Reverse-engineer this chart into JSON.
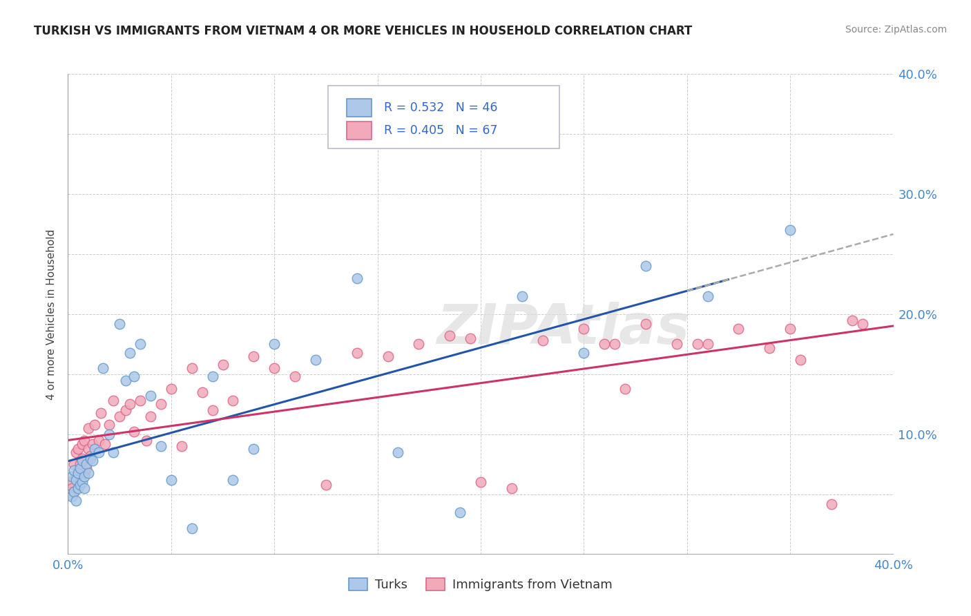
{
  "title": "TURKISH VS IMMIGRANTS FROM VIETNAM 4 OR MORE VEHICLES IN HOUSEHOLD CORRELATION CHART",
  "source": "Source: ZipAtlas.com",
  "ylabel": "4 or more Vehicles in Household",
  "xlim": [
    0.0,
    0.4
  ],
  "ylim": [
    0.0,
    0.4
  ],
  "xticks": [
    0.0,
    0.05,
    0.1,
    0.15,
    0.2,
    0.25,
    0.3,
    0.35,
    0.4
  ],
  "yticks": [
    0.0,
    0.05,
    0.1,
    0.15,
    0.2,
    0.25,
    0.3,
    0.35,
    0.4
  ],
  "xticklabels": [
    "0.0%",
    "",
    "",
    "",
    "",
    "",
    "",
    "",
    "40.0%"
  ],
  "yticklabels": [
    "",
    "",
    "10.0%",
    "",
    "20.0%",
    "",
    "30.0%",
    "",
    "40.0%"
  ],
  "turks_color": "#adc8e8",
  "turks_edge_color": "#6699cc",
  "vietnam_color": "#f2aabb",
  "vietnam_edge_color": "#dd6688",
  "turks_R": 0.532,
  "turks_N": 46,
  "vietnam_R": 0.405,
  "vietnam_N": 67,
  "turks_line_color": "#2255aa",
  "vietnam_line_color": "#cc3366",
  "legend_label_turks": "Turks",
  "legend_label_vietnam": "Immigrants from Vietnam",
  "watermark": "ZIPAtlas",
  "background_color": "#ffffff",
  "grid_color": "#cccccc",
  "turks_x": [
    0.001,
    0.002,
    0.002,
    0.003,
    0.003,
    0.004,
    0.004,
    0.005,
    0.005,
    0.006,
    0.006,
    0.007,
    0.007,
    0.008,
    0.008,
    0.009,
    0.01,
    0.011,
    0.012,
    0.013,
    0.015,
    0.017,
    0.02,
    0.022,
    0.025,
    0.028,
    0.03,
    0.032,
    0.035,
    0.04,
    0.045,
    0.05,
    0.06,
    0.07,
    0.08,
    0.09,
    0.1,
    0.12,
    0.14,
    0.16,
    0.19,
    0.22,
    0.25,
    0.28,
    0.31,
    0.35
  ],
  "turks_y": [
    0.05,
    0.048,
    0.065,
    0.052,
    0.07,
    0.045,
    0.062,
    0.055,
    0.068,
    0.058,
    0.072,
    0.06,
    0.078,
    0.065,
    0.055,
    0.075,
    0.068,
    0.08,
    0.078,
    0.088,
    0.085,
    0.155,
    0.1,
    0.085,
    0.192,
    0.145,
    0.168,
    0.148,
    0.175,
    0.132,
    0.09,
    0.062,
    0.022,
    0.148,
    0.062,
    0.088,
    0.175,
    0.162,
    0.23,
    0.085,
    0.035,
    0.215,
    0.168,
    0.24,
    0.215,
    0.27
  ],
  "vietnam_x": [
    0.001,
    0.002,
    0.003,
    0.003,
    0.004,
    0.004,
    0.005,
    0.005,
    0.006,
    0.006,
    0.007,
    0.007,
    0.008,
    0.008,
    0.009,
    0.01,
    0.01,
    0.011,
    0.012,
    0.013,
    0.015,
    0.016,
    0.018,
    0.02,
    0.022,
    0.025,
    0.028,
    0.03,
    0.032,
    0.035,
    0.038,
    0.04,
    0.045,
    0.05,
    0.055,
    0.06,
    0.065,
    0.07,
    0.075,
    0.08,
    0.09,
    0.1,
    0.11,
    0.125,
    0.14,
    0.155,
    0.17,
    0.185,
    0.2,
    0.215,
    0.23,
    0.25,
    0.265,
    0.28,
    0.295,
    0.31,
    0.325,
    0.34,
    0.355,
    0.37,
    0.385,
    0.26,
    0.195,
    0.27,
    0.305,
    0.35,
    0.38
  ],
  "vietnam_y": [
    0.06,
    0.055,
    0.052,
    0.075,
    0.065,
    0.085,
    0.07,
    0.088,
    0.06,
    0.075,
    0.08,
    0.092,
    0.068,
    0.095,
    0.072,
    0.088,
    0.105,
    0.082,
    0.092,
    0.108,
    0.095,
    0.118,
    0.092,
    0.108,
    0.128,
    0.115,
    0.12,
    0.125,
    0.102,
    0.128,
    0.095,
    0.115,
    0.125,
    0.138,
    0.09,
    0.155,
    0.135,
    0.12,
    0.158,
    0.128,
    0.165,
    0.155,
    0.148,
    0.058,
    0.168,
    0.165,
    0.175,
    0.182,
    0.06,
    0.055,
    0.178,
    0.188,
    0.175,
    0.192,
    0.175,
    0.175,
    0.188,
    0.172,
    0.162,
    0.042,
    0.192,
    0.175,
    0.18,
    0.138,
    0.175,
    0.188,
    0.195
  ]
}
